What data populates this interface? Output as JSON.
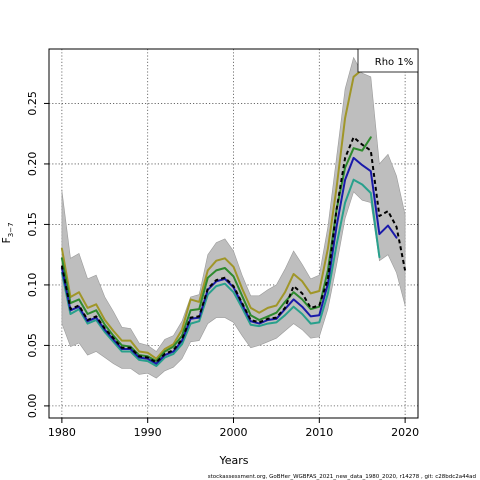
{
  "chart_data": {
    "type": "line",
    "xlabel": "Years",
    "ylabel": "F",
    "ylabel_sub": "3−7",
    "legend": "Rho 1%",
    "legend_placement": "top-right",
    "footer": "stockassessment.org, GoBHer_WGBFAS_2021_new_data_1980_2020, r14278 , git: c28bdc2a44ad",
    "xlim": [
      1978.5,
      2021.5
    ],
    "ylim": [
      -0.01,
      0.295
    ],
    "x_ticks": [
      1980,
      1990,
      2000,
      2010,
      2020
    ],
    "x_tick_labels": [
      "1980",
      "1990",
      "2000",
      "2010",
      "2020"
    ],
    "y_ticks": [
      0.0,
      0.05,
      0.1,
      0.15,
      0.2,
      0.25
    ],
    "y_tick_labels": [
      "0.00",
      "0.05",
      "0.10",
      "0.15",
      "0.20",
      "0.25"
    ],
    "grid": true,
    "colors": {
      "band": "#bebebe",
      "band_edge": "#9a9a9a",
      "base": "#000000",
      "peel1": "#1a1aaa",
      "peel2": "#28a08c",
      "peel3": "#2e8a2e",
      "peel4": "#a09628"
    },
    "band": {
      "x": [
        1980,
        1981,
        1982,
        1983,
        1984,
        1985,
        1986,
        1987,
        1988,
        1989,
        1990,
        1991,
        1992,
        1993,
        1994,
        1995,
        1996,
        1997,
        1998,
        1999,
        2000,
        2001,
        2002,
        2003,
        2004,
        2005,
        2006,
        2007,
        2008,
        2009,
        2010,
        2011,
        2012,
        2013,
        2014,
        2015,
        2016,
        2017,
        2018,
        2019,
        2020
      ],
      "upper": [
        0.178,
        0.122,
        0.126,
        0.105,
        0.108,
        0.09,
        0.078,
        0.065,
        0.064,
        0.052,
        0.05,
        0.045,
        0.055,
        0.058,
        0.07,
        0.09,
        0.092,
        0.125,
        0.135,
        0.138,
        0.128,
        0.108,
        0.091,
        0.091,
        0.096,
        0.1,
        0.113,
        0.128,
        0.117,
        0.105,
        0.108,
        0.148,
        0.205,
        0.262,
        0.288,
        0.275,
        0.272,
        0.2,
        0.208,
        0.19,
        0.158
      ],
      "lower": [
        0.068,
        0.049,
        0.052,
        0.042,
        0.045,
        0.04,
        0.035,
        0.031,
        0.031,
        0.026,
        0.027,
        0.023,
        0.029,
        0.032,
        0.039,
        0.053,
        0.054,
        0.068,
        0.073,
        0.073,
        0.069,
        0.058,
        0.048,
        0.05,
        0.053,
        0.056,
        0.062,
        0.068,
        0.063,
        0.056,
        0.057,
        0.08,
        0.116,
        0.155,
        0.177,
        0.17,
        0.168,
        0.12,
        0.125,
        0.11,
        0.083
      ]
    },
    "series": [
      {
        "key": "peel4",
        "dashed": false,
        "x": [
          1980,
          1981,
          1982,
          1983,
          1984,
          1985,
          1986,
          1987,
          1988,
          1989,
          1990,
          1991,
          1992,
          1993,
          1994,
          1995,
          1996,
          1997,
          1998,
          1999,
          2000,
          2001,
          2002,
          2003,
          2004,
          2005,
          2006,
          2007,
          2008,
          2009,
          2010,
          2011,
          2012,
          2013,
          2014,
          2015,
          2016
        ],
        "values": [
          0.13,
          0.09,
          0.094,
          0.081,
          0.084,
          0.071,
          0.062,
          0.054,
          0.054,
          0.045,
          0.044,
          0.039,
          0.047,
          0.051,
          0.063,
          0.088,
          0.086,
          0.112,
          0.12,
          0.122,
          0.115,
          0.097,
          0.081,
          0.077,
          0.081,
          0.083,
          0.094,
          0.109,
          0.103,
          0.093,
          0.095,
          0.13,
          0.18,
          0.238,
          0.272,
          0.278,
          0.278
        ]
      },
      {
        "key": "peel3",
        "dashed": false,
        "x": [
          1980,
          1981,
          1982,
          1983,
          1984,
          1985,
          1986,
          1987,
          1988,
          1989,
          1990,
          1991,
          1992,
          1993,
          1994,
          1995,
          1996,
          1997,
          1998,
          1999,
          2000,
          2001,
          2002,
          2003,
          2004,
          2005,
          2006,
          2007,
          2008,
          2009,
          2010,
          2011,
          2012,
          2013,
          2014,
          2015,
          2016
        ],
        "values": [
          0.122,
          0.085,
          0.088,
          0.076,
          0.079,
          0.067,
          0.058,
          0.05,
          0.049,
          0.042,
          0.041,
          0.037,
          0.045,
          0.049,
          0.058,
          0.079,
          0.08,
          0.106,
          0.112,
          0.114,
          0.107,
          0.091,
          0.075,
          0.071,
          0.074,
          0.077,
          0.086,
          0.094,
          0.088,
          0.08,
          0.082,
          0.112,
          0.162,
          0.197,
          0.213,
          0.211,
          0.222
        ]
      },
      {
        "key": "peel2",
        "dashed": false,
        "x": [
          1980,
          1981,
          1982,
          1983,
          1984,
          1985,
          1986,
          1987,
          1988,
          1989,
          1990,
          1991,
          1992,
          1993,
          1994,
          1995,
          1996,
          1997,
          1998,
          1999,
          2000,
          2001,
          2002,
          2003,
          2004,
          2005,
          2006,
          2007,
          2008,
          2009,
          2010,
          2011,
          2012,
          2013,
          2014,
          2015,
          2016,
          2017
        ],
        "values": [
          0.11,
          0.076,
          0.08,
          0.068,
          0.071,
          0.061,
          0.053,
          0.045,
          0.045,
          0.038,
          0.037,
          0.033,
          0.04,
          0.043,
          0.051,
          0.068,
          0.07,
          0.092,
          0.099,
          0.101,
          0.094,
          0.081,
          0.067,
          0.066,
          0.068,
          0.069,
          0.075,
          0.082,
          0.076,
          0.068,
          0.069,
          0.093,
          0.133,
          0.168,
          0.187,
          0.183,
          0.176,
          0.123
        ]
      },
      {
        "key": "peel1",
        "dashed": false,
        "x": [
          1980,
          1981,
          1982,
          1983,
          1984,
          1985,
          1986,
          1987,
          1988,
          1989,
          1990,
          1991,
          1992,
          1993,
          1994,
          1995,
          1996,
          1997,
          1998,
          1999,
          2000,
          2001,
          2002,
          2003,
          2004,
          2005,
          2006,
          2007,
          2008,
          2009,
          2010,
          2011,
          2012,
          2013,
          2014,
          2015,
          2016,
          2017,
          2018,
          2019
        ],
        "values": [
          0.114,
          0.079,
          0.082,
          0.07,
          0.073,
          0.063,
          0.055,
          0.047,
          0.047,
          0.04,
          0.039,
          0.035,
          0.042,
          0.045,
          0.054,
          0.072,
          0.073,
          0.096,
          0.103,
          0.105,
          0.098,
          0.084,
          0.07,
          0.068,
          0.071,
          0.072,
          0.08,
          0.088,
          0.082,
          0.074,
          0.075,
          0.101,
          0.148,
          0.187,
          0.205,
          0.199,
          0.194,
          0.142,
          0.149,
          0.139
        ]
      },
      {
        "key": "base",
        "dashed": true,
        "x": [
          1980,
          1981,
          1982,
          1983,
          1984,
          1985,
          1986,
          1987,
          1988,
          1989,
          1990,
          1991,
          1992,
          1993,
          1994,
          1995,
          1996,
          1997,
          1998,
          1999,
          2000,
          2001,
          2002,
          2003,
          2004,
          2005,
          2006,
          2007,
          2008,
          2009,
          2010,
          2011,
          2012,
          2013,
          2014,
          2015,
          2016,
          2017,
          2018,
          2019,
          2020
        ],
        "values": [
          0.116,
          0.08,
          0.083,
          0.071,
          0.074,
          0.064,
          0.056,
          0.048,
          0.048,
          0.041,
          0.04,
          0.036,
          0.043,
          0.046,
          0.055,
          0.073,
          0.074,
          0.097,
          0.104,
          0.106,
          0.099,
          0.085,
          0.071,
          0.069,
          0.072,
          0.073,
          0.081,
          0.099,
          0.093,
          0.081,
          0.083,
          0.105,
          0.162,
          0.205,
          0.222,
          0.216,
          0.211,
          0.157,
          0.161,
          0.148,
          0.112
        ]
      }
    ]
  }
}
